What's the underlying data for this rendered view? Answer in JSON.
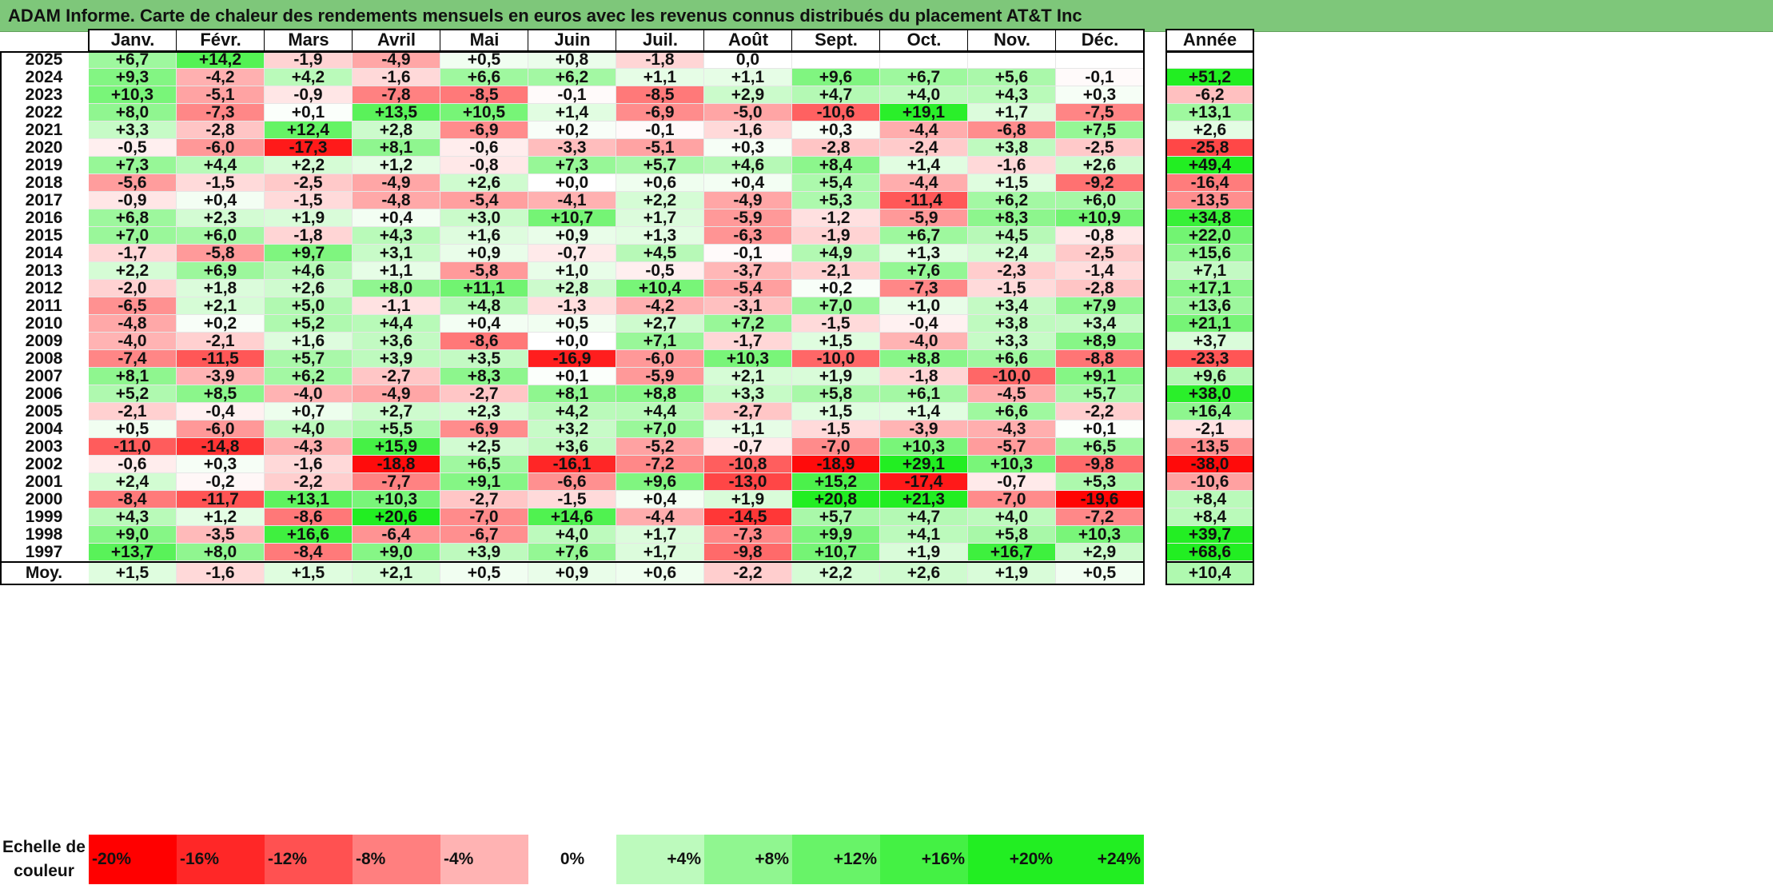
{
  "title": "ADAM Informe. Carte de chaleur des rendements mensuels en euros avec les revenus connus distribués du placement AT&T Inc",
  "chart_data": {
    "type": "heatmap",
    "title": "ADAM Informe. Carte de chaleur des rendements mensuels en euros avec les revenus connus distribués du placement AT&T Inc",
    "columns": [
      "Janv.",
      "Févr.",
      "Mars",
      "Avril",
      "Mai",
      "Juin",
      "Juil.",
      "Août",
      "Sept.",
      "Oct.",
      "Nov.",
      "Déc."
    ],
    "year_column_label": "Année",
    "rows": [
      {
        "year": "2025",
        "values": [
          "+6,7",
          "+14,2",
          "-1,9",
          "-4,9",
          "+0,5",
          "+0,8",
          "-1,8",
          "0,0",
          "",
          "",
          "",
          ""
        ],
        "annual": ""
      },
      {
        "year": "2024",
        "values": [
          "+9,3",
          "-4,2",
          "+4,2",
          "-1,6",
          "+6,6",
          "+6,2",
          "+1,1",
          "+1,1",
          "+9,6",
          "+6,7",
          "+5,6",
          "-0,1"
        ],
        "annual": "+51,2"
      },
      {
        "year": "2023",
        "values": [
          "+10,3",
          "-5,1",
          "-0,9",
          "-7,8",
          "-8,5",
          "-0,1",
          "-8,5",
          "+2,9",
          "+4,7",
          "+4,0",
          "+4,3",
          "+0,3"
        ],
        "annual": "-6,2"
      },
      {
        "year": "2022",
        "values": [
          "+8,0",
          "-7,3",
          "+0,1",
          "+13,5",
          "+10,5",
          "+1,4",
          "-6,9",
          "-5,0",
          "-10,6",
          "+19,1",
          "+1,7",
          "-7,5"
        ],
        "annual": "+13,1"
      },
      {
        "year": "2021",
        "values": [
          "+3,3",
          "-2,8",
          "+12,4",
          "+2,8",
          "-6,9",
          "+0,2",
          "-0,1",
          "-1,6",
          "+0,3",
          "-4,4",
          "-6,8",
          "+7,5"
        ],
        "annual": "+2,6"
      },
      {
        "year": "2020",
        "values": [
          "-0,5",
          "-6,0",
          "-17,3",
          "+8,1",
          "-0,6",
          "-3,3",
          "-5,1",
          "+0,3",
          "-2,8",
          "-2,4",
          "+3,8",
          "-2,5"
        ],
        "annual": "-25,8"
      },
      {
        "year": "2019",
        "values": [
          "+7,3",
          "+4,4",
          "+2,2",
          "+1,2",
          "-0,8",
          "+7,3",
          "+5,7",
          "+4,6",
          "+8,4",
          "+1,4",
          "-1,6",
          "+2,6"
        ],
        "annual": "+49,4"
      },
      {
        "year": "2018",
        "values": [
          "-5,6",
          "-1,5",
          "-2,5",
          "-4,9",
          "+2,6",
          "+0,0",
          "+0,6",
          "+0,4",
          "+5,4",
          "-4,4",
          "+1,5",
          "-9,2"
        ],
        "annual": "-16,4"
      },
      {
        "year": "2017",
        "values": [
          "-0,9",
          "+0,4",
          "-1,5",
          "-4,8",
          "-5,4",
          "-4,1",
          "+2,2",
          "-4,9",
          "+5,3",
          "-11,4",
          "+6,2",
          "+6,0"
        ],
        "annual": "-13,5"
      },
      {
        "year": "2016",
        "values": [
          "+6,8",
          "+2,3",
          "+1,9",
          "+0,4",
          "+3,0",
          "+10,7",
          "+1,7",
          "-5,9",
          "-1,2",
          "-5,9",
          "+8,3",
          "+10,9"
        ],
        "annual": "+34,8"
      },
      {
        "year": "2015",
        "values": [
          "+7,0",
          "+6,0",
          "-1,8",
          "+4,3",
          "+1,6",
          "+0,9",
          "+1,3",
          "-6,3",
          "-1,9",
          "+6,7",
          "+4,5",
          "-0,8"
        ],
        "annual": "+22,0"
      },
      {
        "year": "2014",
        "values": [
          "-1,7",
          "-5,8",
          "+9,7",
          "+3,1",
          "+0,9",
          "-0,7",
          "+4,5",
          "-0,1",
          "+4,9",
          "+1,3",
          "+2,4",
          "-2,5"
        ],
        "annual": "+15,6"
      },
      {
        "year": "2013",
        "values": [
          "+2,2",
          "+6,9",
          "+4,6",
          "+1,1",
          "-5,8",
          "+1,0",
          "-0,5",
          "-3,7",
          "-2,1",
          "+7,6",
          "-2,3",
          "-1,4"
        ],
        "annual": "+7,1"
      },
      {
        "year": "2012",
        "values": [
          "-2,0",
          "+1,8",
          "+2,6",
          "+8,0",
          "+11,1",
          "+2,8",
          "+10,4",
          "-5,4",
          "+0,2",
          "-7,3",
          "-1,5",
          "-2,8"
        ],
        "annual": "+17,1"
      },
      {
        "year": "2011",
        "values": [
          "-6,5",
          "+2,1",
          "+5,0",
          "-1,1",
          "+4,8",
          "-1,3",
          "-4,2",
          "-3,1",
          "+7,0",
          "+1,0",
          "+3,4",
          "+7,9"
        ],
        "annual": "+13,6"
      },
      {
        "year": "2010",
        "values": [
          "-4,8",
          "+0,2",
          "+5,2",
          "+4,4",
          "+0,4",
          "+0,5",
          "+2,7",
          "+7,2",
          "-1,5",
          "-0,4",
          "+3,8",
          "+3,4"
        ],
        "annual": "+21,1"
      },
      {
        "year": "2009",
        "values": [
          "-4,0",
          "-2,1",
          "+1,6",
          "+3,6",
          "-8,6",
          "+0,0",
          "+7,1",
          "-1,7",
          "+1,5",
          "-4,0",
          "+3,3",
          "+8,9"
        ],
        "annual": "+3,7"
      },
      {
        "year": "2008",
        "values": [
          "-7,4",
          "-11,5",
          "+5,7",
          "+3,9",
          "+3,5",
          "-16,9",
          "-6,0",
          "+10,3",
          "-10,0",
          "+8,8",
          "+6,6",
          "-8,8"
        ],
        "annual": "-23,3"
      },
      {
        "year": "2007",
        "values": [
          "+8,1",
          "-3,9",
          "+6,2",
          "-2,7",
          "+8,3",
          "+0,1",
          "-5,9",
          "+2,1",
          "+1,9",
          "-1,8",
          "-10,0",
          "+9,1"
        ],
        "annual": "+9,6"
      },
      {
        "year": "2006",
        "values": [
          "+5,2",
          "+8,5",
          "-4,0",
          "-4,9",
          "-2,7",
          "+8,1",
          "+8,8",
          "+3,3",
          "+5,8",
          "+6,1",
          "-4,5",
          "+5,7"
        ],
        "annual": "+38,0"
      },
      {
        "year": "2005",
        "values": [
          "-2,1",
          "-0,4",
          "+0,7",
          "+2,7",
          "+2,3",
          "+4,2",
          "+4,4",
          "-2,7",
          "+1,5",
          "+1,4",
          "+6,6",
          "-2,2"
        ],
        "annual": "+16,4"
      },
      {
        "year": "2004",
        "values": [
          "+0,5",
          "-6,0",
          "+4,0",
          "+5,5",
          "-6,9",
          "+3,2",
          "+7,0",
          "+1,1",
          "-1,5",
          "-3,9",
          "-4,3",
          "+0,1"
        ],
        "annual": "-2,1"
      },
      {
        "year": "2003",
        "values": [
          "-11,0",
          "-14,8",
          "-4,3",
          "+15,9",
          "+2,5",
          "+3,6",
          "-5,2",
          "-0,7",
          "-7,0",
          "+10,3",
          "-5,7",
          "+6,5"
        ],
        "annual": "-13,5"
      },
      {
        "year": "2002",
        "values": [
          "-0,6",
          "+0,3",
          "-1,6",
          "-18,8",
          "+6,5",
          "-16,1",
          "-7,2",
          "-10,8",
          "-18,9",
          "+29,1",
          "+10,3",
          "-9,8"
        ],
        "annual": "-38,0"
      },
      {
        "year": "2001",
        "values": [
          "+2,4",
          "-0,2",
          "-2,2",
          "-7,7",
          "+9,1",
          "-6,6",
          "+9,6",
          "-13,0",
          "+15,2",
          "-17,4",
          "-0,7",
          "+5,3"
        ],
        "annual": "-10,6"
      },
      {
        "year": "2000",
        "values": [
          "-8,4",
          "-11,7",
          "+13,1",
          "+10,3",
          "-2,7",
          "-1,5",
          "+0,4",
          "+1,9",
          "+20,8",
          "+21,3",
          "-7,0",
          "-19,6"
        ],
        "annual": "+8,4"
      },
      {
        "year": "1999",
        "values": [
          "+4,3",
          "+1,2",
          "-8,6",
          "+20,6",
          "-7,0",
          "+14,6",
          "-4,4",
          "-14,5",
          "+5,7",
          "+4,7",
          "+4,0",
          "-7,2"
        ],
        "annual": "+8,4"
      },
      {
        "year": "1998",
        "values": [
          "+9,0",
          "-3,5",
          "+16,6",
          "-6,4",
          "-6,7",
          "+4,0",
          "+1,7",
          "-7,3",
          "+9,9",
          "+4,1",
          "+5,8",
          "+10,3"
        ],
        "annual": "+39,7"
      },
      {
        "year": "1997",
        "values": [
          "+13,7",
          "+8,0",
          "-8,4",
          "+9,0",
          "+3,9",
          "+7,6",
          "+1,7",
          "-9,8",
          "+10,7",
          "+1,9",
          "+16,7",
          "+2,9"
        ],
        "annual": "+68,6"
      }
    ],
    "average": {
      "label": "Moy.",
      "values": [
        "+1,5",
        "-1,6",
        "+1,5",
        "+2,1",
        "+0,5",
        "+0,9",
        "+0,6",
        "-2,2",
        "+2,2",
        "+2,6",
        "+1,9",
        "+0,5"
      ],
      "annual": "+10,4"
    },
    "color_scale": {
      "label": "Echelle de couleur",
      "stops": [
        "-20%",
        "-16%",
        "-12%",
        "-8%",
        "-4%",
        "0%",
        "+4%",
        "+8%",
        "+12%",
        "+16%",
        "+20%",
        "+24%"
      ],
      "negative_color": "#ff0000",
      "neutral_color": "#ffffff",
      "positive_color": "#22ee22"
    }
  }
}
